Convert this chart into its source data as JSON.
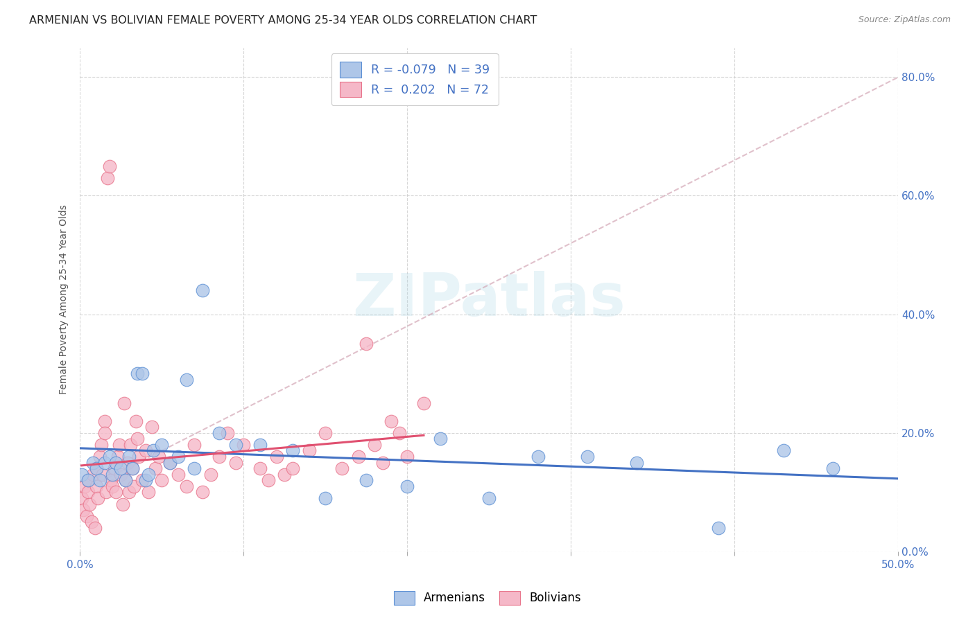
{
  "title": "ARMENIAN VS BOLIVIAN FEMALE POVERTY AMONG 25-34 YEAR OLDS CORRELATION CHART",
  "source": "Source: ZipAtlas.com",
  "ylabel": "Female Poverty Among 25-34 Year Olds",
  "xlim": [
    0.0,
    0.5
  ],
  "ylim": [
    0.0,
    0.85
  ],
  "xticks": [
    0.0,
    0.1,
    0.2,
    0.3,
    0.4,
    0.5
  ],
  "xticklabels_show": [
    "0.0%",
    "",
    "",
    "",
    "",
    "50.0%"
  ],
  "yticks_right": [
    0.0,
    0.2,
    0.4,
    0.6,
    0.8
  ],
  "yticklabels_right": [
    "0.0%",
    "20.0%",
    "40.0%",
    "60.0%",
    "80.0%"
  ],
  "armenian_color": "#aec6e8",
  "bolivian_color": "#f5b8c8",
  "armenian_edge_color": "#5b8fd4",
  "bolivian_edge_color": "#e8738a",
  "armenian_line_color": "#4472c4",
  "bolivian_line_color": "#e05070",
  "watermark": "ZIPatlas",
  "title_fontsize": 11.5,
  "label_fontsize": 10,
  "tick_fontsize": 11,
  "armenian_x": [
    0.001,
    0.005,
    0.008,
    0.01,
    0.012,
    0.015,
    0.018,
    0.02,
    0.022,
    0.025,
    0.028,
    0.03,
    0.032,
    0.035,
    0.038,
    0.04,
    0.042,
    0.045,
    0.05,
    0.055,
    0.06,
    0.065,
    0.07,
    0.075,
    0.085,
    0.095,
    0.11,
    0.13,
    0.15,
    0.175,
    0.2,
    0.22,
    0.25,
    0.28,
    0.31,
    0.34,
    0.39,
    0.43,
    0.46
  ],
  "armenian_y": [
    0.13,
    0.12,
    0.15,
    0.14,
    0.12,
    0.15,
    0.16,
    0.13,
    0.15,
    0.14,
    0.12,
    0.16,
    0.14,
    0.3,
    0.3,
    0.12,
    0.13,
    0.17,
    0.18,
    0.15,
    0.16,
    0.29,
    0.14,
    0.44,
    0.2,
    0.18,
    0.18,
    0.17,
    0.09,
    0.12,
    0.11,
    0.19,
    0.09,
    0.16,
    0.16,
    0.15,
    0.04,
    0.17,
    0.14
  ],
  "bolivian_x": [
    0.001,
    0.002,
    0.003,
    0.004,
    0.005,
    0.005,
    0.006,
    0.007,
    0.008,
    0.009,
    0.01,
    0.01,
    0.011,
    0.012,
    0.013,
    0.014,
    0.015,
    0.015,
    0.016,
    0.017,
    0.018,
    0.019,
    0.02,
    0.021,
    0.022,
    0.023,
    0.024,
    0.025,
    0.026,
    0.027,
    0.028,
    0.029,
    0.03,
    0.031,
    0.032,
    0.033,
    0.034,
    0.035,
    0.036,
    0.038,
    0.04,
    0.042,
    0.044,
    0.046,
    0.048,
    0.05,
    0.055,
    0.06,
    0.065,
    0.07,
    0.075,
    0.08,
    0.085,
    0.09,
    0.095,
    0.1,
    0.11,
    0.115,
    0.12,
    0.125,
    0.13,
    0.14,
    0.15,
    0.16,
    0.17,
    0.175,
    0.18,
    0.185,
    0.19,
    0.195,
    0.2,
    0.21
  ],
  "bolivian_y": [
    0.09,
    0.07,
    0.11,
    0.06,
    0.1,
    0.12,
    0.08,
    0.05,
    0.13,
    0.04,
    0.11,
    0.14,
    0.09,
    0.16,
    0.18,
    0.13,
    0.22,
    0.2,
    0.1,
    0.63,
    0.65,
    0.12,
    0.11,
    0.14,
    0.1,
    0.16,
    0.18,
    0.13,
    0.08,
    0.25,
    0.12,
    0.15,
    0.1,
    0.18,
    0.14,
    0.11,
    0.22,
    0.19,
    0.16,
    0.12,
    0.17,
    0.1,
    0.21,
    0.14,
    0.16,
    0.12,
    0.15,
    0.13,
    0.11,
    0.18,
    0.1,
    0.13,
    0.16,
    0.2,
    0.15,
    0.18,
    0.14,
    0.12,
    0.16,
    0.13,
    0.14,
    0.17,
    0.2,
    0.14,
    0.16,
    0.35,
    0.18,
    0.15,
    0.22,
    0.2,
    0.16,
    0.25
  ]
}
